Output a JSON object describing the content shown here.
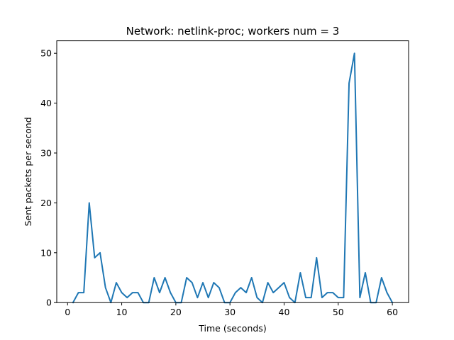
{
  "chart_data": {
    "type": "line",
    "title": "Network: netlink-proc; workers num = 3",
    "xlabel": "Time (seconds)",
    "ylabel": "Sent packets per second",
    "xlim": [
      -2,
      63
    ],
    "ylim": [
      0,
      52.5
    ],
    "xticks": [
      0,
      10,
      20,
      30,
      40,
      50,
      60
    ],
    "yticks": [
      0,
      10,
      20,
      30,
      40,
      50
    ],
    "grid": false,
    "series_color": "#1f77b4",
    "series": [
      {
        "x": [
          1,
          2,
          3,
          4,
          5,
          6,
          7,
          8,
          9,
          10,
          11,
          12,
          13,
          14,
          15,
          16,
          17,
          18,
          19,
          20,
          21,
          22,
          23,
          24,
          25,
          26,
          27,
          28,
          29,
          30,
          31,
          32,
          33,
          34,
          35,
          36,
          37,
          38,
          39,
          40,
          41,
          42,
          43,
          44,
          45,
          46,
          47,
          48,
          49,
          50,
          51,
          52,
          53,
          54,
          55,
          56,
          57,
          58,
          59,
          60
        ],
        "values": [
          0,
          2,
          2,
          20,
          9,
          10,
          3,
          0,
          4,
          2,
          1,
          2,
          2,
          0,
          0,
          5,
          2,
          5,
          2,
          0,
          0,
          5,
          4,
          1,
          4,
          1,
          4,
          3,
          0,
          0,
          2,
          3,
          2,
          5,
          1,
          0,
          4,
          2,
          3,
          4,
          1,
          0,
          6,
          1,
          1,
          9,
          1,
          2,
          2,
          1,
          1,
          44,
          50,
          1,
          6,
          0,
          0,
          5,
          2,
          0
        ]
      }
    ]
  }
}
